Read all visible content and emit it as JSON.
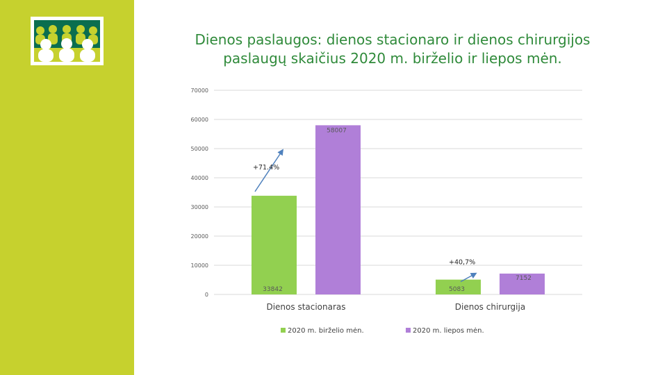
{
  "colors": {
    "sidebar": "#c6d12e",
    "title": "#2f8a3a",
    "series_june": "#92d050",
    "series_july": "#b07fd8",
    "arrow": "#4f81bd"
  },
  "slide": {
    "title_line1": "Dienos paslaugos: dienos stacionaro ir dienos chirurgijos",
    "title_line2": "paslaugų skaičius 2020 m. birželio ir liepos mėn.",
    "logo_icon": "people-group-logo-icon"
  },
  "chart_data": {
    "type": "bar",
    "title": "",
    "xlabel": "",
    "ylabel": "",
    "ylim": [
      0,
      70000
    ],
    "yticks": [
      0,
      10000,
      20000,
      30000,
      40000,
      50000,
      60000,
      70000
    ],
    "grid": true,
    "legend_position": "bottom",
    "categories": [
      "Dienos stacionaras",
      "Dienos chirurgija"
    ],
    "series": [
      {
        "name": "2020 m. birželio mėn.",
        "values": [
          33842,
          5083
        ],
        "labels": [
          "33842",
          "5083"
        ]
      },
      {
        "name": "2020 m. liepos mėn.",
        "values": [
          58007,
          7152
        ],
        "labels": [
          "58007",
          "7152"
        ]
      }
    ],
    "annotations": [
      {
        "text": "+71.4%",
        "category": 0
      },
      {
        "text": "+40,7%",
        "category": 1
      }
    ]
  }
}
